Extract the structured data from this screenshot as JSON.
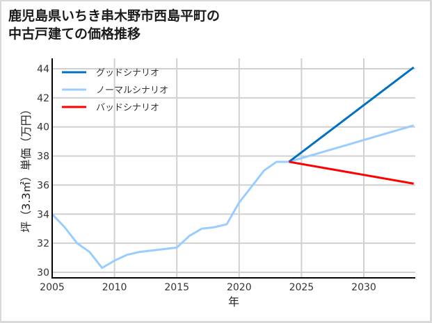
{
  "title_line1": "鹿児島県いちき串木野市西島平町の",
  "title_line2": "中古戸建ての価格推移",
  "chart_data": {
    "type": "line",
    "title": "鹿児島県いちき串木野市西島平町の中古戸建ての価格推移",
    "xlabel": "年",
    "ylabel": "坪（3.3㎡）単価（万円）",
    "xlim": [
      2005,
      2034
    ],
    "ylim": [
      29.8,
      44.6
    ],
    "xticks": [
      2005,
      2010,
      2015,
      2020,
      2025,
      2030
    ],
    "yticks": [
      30,
      32,
      34,
      36,
      38,
      40,
      42,
      44
    ],
    "grid": true,
    "legend_position": "upper left",
    "series": [
      {
        "name": "グッドシナリオ",
        "color": "#0070c0",
        "x": [
          2024,
          2034
        ],
        "values": [
          37.6,
          44.1
        ]
      },
      {
        "name": "ノーマルシナリオ",
        "color": "#99ccff",
        "x": [
          2005,
          2006,
          2007,
          2008,
          2009,
          2010,
          2011,
          2012,
          2013,
          2014,
          2015,
          2016,
          2017,
          2018,
          2019,
          2020,
          2021,
          2022,
          2023,
          2024,
          2034
        ],
        "values": [
          34.0,
          33.1,
          32.0,
          31.4,
          30.3,
          30.8,
          31.2,
          31.4,
          31.5,
          31.6,
          31.7,
          32.5,
          33.0,
          33.1,
          33.3,
          34.8,
          35.9,
          37.0,
          37.6,
          37.6,
          40.1
        ]
      },
      {
        "name": "バッドシナリオ",
        "color": "#ff0000",
        "x": [
          2024,
          2034
        ],
        "values": [
          37.6,
          36.1
        ]
      }
    ]
  }
}
